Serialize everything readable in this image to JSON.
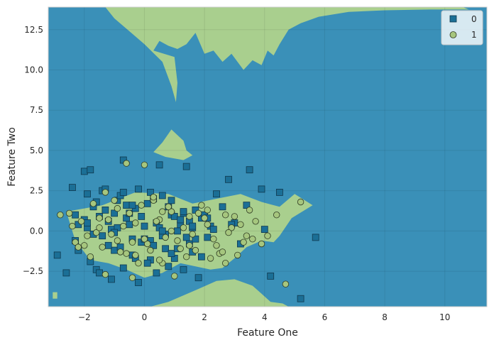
{
  "chart_data": {
    "type": "scatter",
    "title": "",
    "xlabel": "Feature One",
    "ylabel": "Feature Two",
    "xlim": [
      -3.2,
      11.4
    ],
    "ylim": [
      -4.7,
      13.9
    ],
    "xticks": [
      -2,
      0,
      2,
      4,
      6,
      8,
      10
    ],
    "yticks": [
      -2.5,
      0.0,
      2.5,
      5.0,
      7.5,
      10.0,
      12.5
    ],
    "xtick_labels": [
      "−2",
      "0",
      "2",
      "4",
      "6",
      "8",
      "10"
    ],
    "ytick_labels": [
      "−2.5",
      "0.0",
      "2.5",
      "5.0",
      "7.5",
      "10.0",
      "12.5"
    ],
    "grid": true,
    "legend_position": "top-right",
    "colors": {
      "class_0": "#1b6f96",
      "class_1": "#a6c67e",
      "region_0": "#3a90b8",
      "region_1": "#a9cf8e"
    },
    "decision_regions": {
      "class_1_regions": [
        {
          "name": "top",
          "x": [
            -1.3,
            -0.6,
            0.2,
            0.9,
            1.6,
            2.0,
            2.8,
            3.5,
            4.0,
            4.6,
            5.5,
            6.8,
            8.0,
            9.5,
            10.6,
            10.8,
            9.5,
            8.0,
            6.8,
            5.8,
            5.2,
            4.8,
            4.5,
            4.3,
            4.1,
            3.9,
            3.6,
            3.3,
            2.9,
            2.6,
            2.3,
            2.0,
            1.7,
            1.4,
            1.1,
            0.8,
            0.5,
            0.3,
            1.0,
            1.1,
            1.05,
            0.9,
            0.6,
            0.0,
            -0.5,
            -1.0,
            -1.3
          ],
          "y": [
            13.9,
            13.9,
            13.9,
            13.9,
            13.9,
            13.9,
            13.9,
            13.9,
            13.9,
            13.9,
            13.9,
            13.9,
            13.9,
            13.9,
            13.9,
            13.75,
            13.75,
            13.7,
            13.6,
            13.3,
            12.9,
            12.5,
            11.6,
            10.9,
            11.2,
            10.3,
            10.6,
            10.0,
            11.0,
            10.5,
            11.2,
            11.0,
            12.3,
            11.6,
            11.3,
            11.5,
            11.8,
            11.2,
            10.8,
            9.2,
            8.0,
            9.0,
            10.5,
            11.6,
            12.4,
            13.2,
            13.9
          ]
        },
        {
          "name": "mid-blob",
          "x": [
            0.3,
            0.6,
            0.9,
            1.3,
            1.4,
            1.6,
            1.3,
            1.0,
            0.7,
            0.3
          ],
          "y": [
            4.9,
            5.5,
            6.3,
            5.6,
            5.0,
            4.7,
            4.4,
            4.5,
            4.6,
            4.9
          ]
        },
        {
          "name": "central",
          "x": [
            -2.6,
            -1.4,
            -0.3,
            0.8,
            1.6,
            2.4,
            3.2,
            3.9,
            4.5,
            5.0,
            5.6,
            4.9,
            4.5,
            4.3,
            3.9,
            3.4,
            3.0,
            2.6,
            2.2,
            1.7,
            1.2,
            0.6,
            0.0,
            -0.6,
            -1.2,
            -1.8,
            -2.3,
            -2.6
          ],
          "y": [
            1.2,
            1.6,
            2.4,
            2.3,
            1.7,
            2.0,
            2.3,
            1.8,
            1.5,
            2.3,
            1.6,
            0.8,
            -0.3,
            -0.7,
            -0.6,
            -1.0,
            -1.7,
            -2.3,
            -2.4,
            -2.2,
            -2.0,
            -2.6,
            -2.9,
            -2.4,
            -2.0,
            -1.8,
            -0.6,
            1.2
          ]
        },
        {
          "name": "bottom",
          "x": [
            0.2,
            0.8,
            1.3,
            1.8,
            2.4,
            3.0,
            3.6,
            3.9,
            4.2,
            4.6,
            4.8,
            4.6,
            4.4,
            4.0,
            3.6,
            3.3,
            2.7,
            2.1,
            1.6,
            1.2,
            0.8,
            0.5,
            0.2
          ],
          "y": [
            -4.7,
            -4.4,
            -4.0,
            -3.6,
            -3.1,
            -3.0,
            -3.4,
            -3.9,
            -4.4,
            -4.5,
            -4.7,
            -4.7,
            -4.7,
            -4.7,
            -4.7,
            -4.7,
            -4.7,
            -4.7,
            -4.7,
            -4.7,
            -4.7,
            -4.7,
            -4.7
          ]
        },
        {
          "name": "left-strip",
          "x": [
            -3.05,
            -2.9,
            -2.9,
            -3.05
          ],
          "y": [
            -3.8,
            -3.8,
            -4.2,
            -4.2
          ]
        }
      ]
    },
    "series": [
      {
        "name": "0",
        "marker": "square",
        "x": [
          -2.9,
          -2.6,
          -2.4,
          -2.3,
          -2.2,
          -2.0,
          -1.9,
          -1.8,
          -1.7,
          -1.6,
          -1.5,
          -1.4,
          -1.3,
          -1.2,
          -1.1,
          -1.0,
          -0.9,
          -0.8,
          -0.7,
          -0.6,
          -0.5,
          -0.4,
          -0.3,
          -0.2,
          -0.1,
          0.0,
          0.1,
          0.2,
          0.3,
          0.4,
          0.5,
          0.6,
          0.7,
          0.8,
          0.9,
          1.0,
          1.1,
          1.2,
          1.3,
          1.4,
          1.5,
          1.6,
          1.7,
          1.8,
          1.9,
          2.0,
          2.1,
          2.2,
          2.3,
          2.4,
          2.6,
          2.8,
          3.0,
          3.2,
          3.5,
          3.9,
          4.2,
          4.5,
          5.2,
          5.7,
          -2.2,
          -1.8,
          -1.5,
          -1.1,
          -0.7,
          -0.4,
          -0.2,
          0.1,
          0.4,
          0.7,
          1.0,
          1.3,
          1.6,
          1.9,
          -2.0,
          -1.6,
          -1.2,
          -0.8,
          -0.5,
          -0.1,
          0.2,
          0.6,
          0.9,
          1.2,
          1.5,
          -1.9,
          -1.4,
          -0.9,
          -0.3,
          0.3,
          0.8,
          1.4,
          -2.3,
          -1.7,
          -1.0,
          -0.6,
          0.0,
          0.5,
          1.1,
          1.7,
          -1.3,
          -0.7,
          0.2,
          0.9,
          1.6,
          -1.9,
          -1.0,
          -0.4,
          0.6,
          1.3,
          2.1,
          3.4,
          4.0,
          2.9
        ],
        "y": [
          -1.5,
          -2.6,
          2.7,
          1.0,
          0.4,
          3.7,
          0.2,
          3.8,
          1.5,
          -2.4,
          0.9,
          -0.3,
          1.3,
          0.6,
          0.1,
          -1.2,
          1.9,
          2.2,
          4.4,
          0.8,
          1.1,
          -0.5,
          1.4,
          2.6,
          -0.7,
          0.3,
          1.7,
          -1.8,
          2.0,
          0.5,
          4.1,
          2.2,
          -0.2,
          1.5,
          1.0,
          0.9,
          0.0,
          0.4,
          1.1,
          4.0,
          0.6,
          0.2,
          1.3,
          -2.9,
          0.8,
          1.0,
          -0.4,
          0.3,
          0.1,
          2.3,
          1.5,
          3.2,
          0.5,
          -0.8,
          3.8,
          2.6,
          -2.8,
          2.4,
          -4.2,
          -0.4,
          -1.2,
          -1.9,
          -2.6,
          -3.0,
          -2.3,
          -1.5,
          -3.2,
          -2.0,
          -2.6,
          -1.1,
          -1.7,
          -2.4,
          -1.3,
          -1.6,
          0.7,
          1.8,
          -0.9,
          -1.0,
          0.4,
          0.9,
          -0.6,
          -0.3,
          -1.4,
          0.7,
          -0.8,
          2.3,
          2.5,
          0.2,
          -1.7,
          -0.9,
          -2.2,
          -0.4,
          -0.6,
          -0.2,
          1.1,
          1.6,
          -0.5,
          0.2,
          -1.1,
          -0.5,
          2.6,
          2.4,
          2.4,
          1.9,
          0.3,
          0.5,
          -0.1,
          1.6,
          0.0,
          1.2,
          0.8,
          1.6,
          0.1,
          0.4
        ]
      },
      {
        "name": "1",
        "marker": "circle",
        "x": [
          -2.8,
          -2.5,
          -2.3,
          -2.1,
          -1.9,
          -1.7,
          -1.5,
          -1.3,
          -1.1,
          -0.9,
          -0.7,
          -0.5,
          -0.3,
          -0.1,
          0.1,
          0.3,
          0.5,
          0.7,
          0.9,
          1.1,
          1.3,
          1.5,
          1.7,
          1.9,
          2.1,
          2.3,
          2.5,
          2.7,
          2.9,
          3.1,
          3.3,
          3.5,
          3.7,
          3.9,
          4.1,
          4.4,
          4.7,
          5.2,
          -2.4,
          -2.0,
          -1.6,
          -1.2,
          -0.8,
          -0.4,
          0.0,
          0.4,
          0.8,
          1.2,
          1.6,
          2.0,
          2.4,
          2.8,
          3.2,
          -1.8,
          -1.4,
          -1.0,
          -0.6,
          -0.2,
          0.2,
          0.6,
          1.0,
          1.4,
          1.8,
          2.2,
          2.6,
          3.0,
          3.4,
          -2.2,
          -1.5,
          -0.9,
          -0.3,
          0.3,
          0.9,
          1.5,
          2.1,
          2.7,
          3.6,
          -0.6,
          0.0,
          0.6,
          -1.3,
          -0.4,
          0.5
        ],
        "y": [
          1.0,
          1.1,
          -0.7,
          0.6,
          -0.3,
          1.7,
          0.8,
          2.4,
          -0.2,
          1.4,
          0.3,
          1.1,
          0.5,
          1.6,
          -0.8,
          1.9,
          0.7,
          -0.4,
          1.2,
          -0.6,
          0.2,
          0.9,
          -1.2,
          1.6,
          0.4,
          -0.5,
          -1.4,
          1.0,
          0.2,
          -1.5,
          -0.7,
          1.3,
          0.6,
          -0.8,
          -0.3,
          1.0,
          -3.3,
          1.8,
          0.3,
          -0.9,
          -0.1,
          0.7,
          -1.3,
          -0.7,
          -0.5,
          0.6,
          1.5,
          -1.1,
          -0.2,
          0.8,
          -0.9,
          -0.1,
          0.4,
          -1.6,
          -1.0,
          1.9,
          -1.4,
          -2.0,
          -1.2,
          1.2,
          -2.8,
          -1.6,
          1.1,
          -1.7,
          -1.3,
          0.9,
          -0.3,
          -1.0,
          0.2,
          -0.6,
          -1.5,
          2.1,
          0.0,
          -0.9,
          1.3,
          -2.0,
          -0.5,
          4.2,
          4.1,
          -2.0,
          -2.7,
          -2.9,
          -1.8
        ]
      }
    ]
  }
}
